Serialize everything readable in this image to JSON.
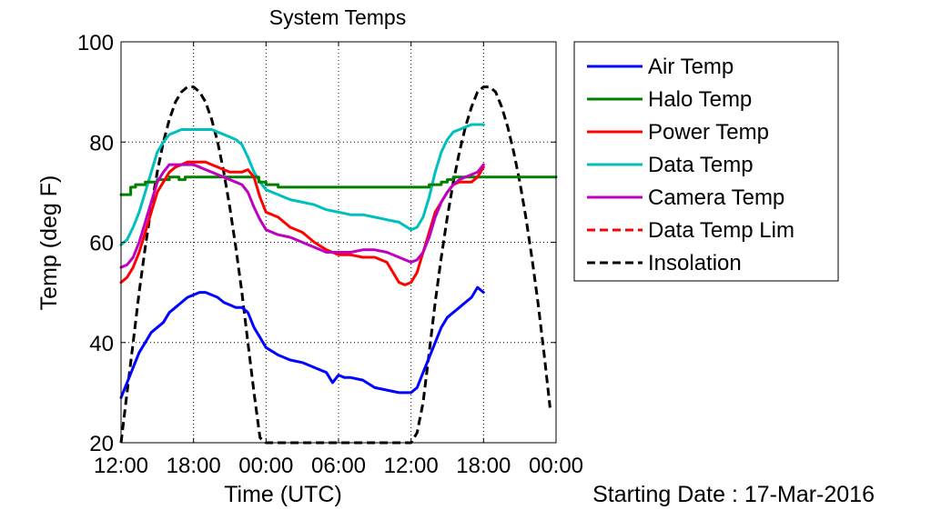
{
  "chart_data": {
    "type": "line",
    "title": "System Temps",
    "xlabel": "Time (UTC)",
    "ylabel": "Temp (deg F)",
    "footnote": "Starting Date : 17-Mar-2016",
    "x_unit": "hours from start",
    "x_ticks": [
      {
        "x": 0,
        "label": "12:00"
      },
      {
        "x": 6,
        "label": "18:00"
      },
      {
        "x": 12,
        "label": "00:00"
      },
      {
        "x": 18,
        "label": "06:00"
      },
      {
        "x": 24,
        "label": "12:00"
      },
      {
        "x": 30,
        "label": "18:00"
      },
      {
        "x": 36,
        "label": "00:00"
      }
    ],
    "xlim": [
      0,
      36
    ],
    "ylim": [
      20,
      100
    ],
    "y_ticks": [
      20,
      40,
      60,
      80,
      100
    ],
    "grid": true,
    "legend_position": "outside-right-top",
    "series": [
      {
        "name": "Air Temp",
        "color": "#0000ff",
        "style": "solid",
        "x": [
          0,
          0.5,
          1,
          1.5,
          2,
          2.5,
          3,
          3.5,
          4,
          4.5,
          5,
          5.5,
          6,
          6.5,
          7,
          7.5,
          8,
          8.5,
          9,
          9.5,
          10,
          10.5,
          11,
          11.5,
          12,
          13,
          14,
          15,
          16,
          17,
          17.5,
          18,
          18.5,
          19,
          20,
          21,
          22,
          23,
          24,
          24.5,
          25,
          25.5,
          26,
          26.5,
          27,
          27.5,
          28,
          28.5,
          29,
          29.5,
          30
        ],
        "y": [
          29,
          32,
          35,
          38,
          40,
          42,
          43,
          44,
          46,
          47,
          48,
          49,
          49.5,
          50,
          50,
          49.5,
          49,
          48,
          47.5,
          47,
          47,
          46,
          43,
          41,
          39,
          37.5,
          36.5,
          36,
          35,
          34,
          32,
          33.5,
          33,
          33,
          32.5,
          31,
          30.5,
          30,
          30,
          31,
          34,
          37,
          40,
          43,
          45,
          46,
          47,
          48,
          49,
          51,
          50
        ]
      },
      {
        "name": "Halo Temp",
        "color": "#008000",
        "style": "solid",
        "x": [
          0,
          0.8,
          0.8,
          1.2,
          1.2,
          2.0,
          2.0,
          3.0,
          3.0,
          4.0,
          4.0,
          4.8,
          4.8,
          5.3,
          5.3,
          11.4,
          11.4,
          12.0,
          12.0,
          13.0,
          13.0,
          25.5,
          25.5,
          26.5,
          26.5,
          27.0,
          27.0,
          27.5,
          27.5,
          36
        ],
        "y": [
          69.5,
          69.5,
          71,
          71,
          71.5,
          71.5,
          72,
          72,
          72.5,
          72.5,
          73,
          73,
          72.5,
          72.5,
          73,
          73,
          72,
          72,
          71.5,
          71.5,
          71,
          71,
          71.5,
          71.5,
          72,
          72,
          72.5,
          72.5,
          73,
          73
        ]
      },
      {
        "name": "Power Temp",
        "color": "#ff0000",
        "style": "solid",
        "x": [
          0,
          0.5,
          1,
          1.5,
          2,
          2.5,
          3,
          3.5,
          4,
          4.5,
          5,
          5.5,
          6,
          6.5,
          7,
          7.5,
          8,
          8.5,
          9,
          9.5,
          10,
          10.5,
          11,
          11.5,
          12,
          13,
          14,
          15,
          16,
          17,
          18,
          19,
          20,
          21,
          22,
          22.5,
          23,
          23.5,
          24,
          24.5,
          25,
          25.5,
          26,
          26.5,
          27,
          27.5,
          28,
          28.5,
          29,
          29.5,
          30
        ],
        "y": [
          52,
          53,
          55,
          58,
          62,
          66,
          70,
          72,
          74,
          75,
          75.5,
          76,
          76,
          76,
          76,
          75.5,
          75,
          74.5,
          74,
          74,
          74,
          74.5,
          73,
          69,
          66,
          65,
          63,
          62,
          60,
          58.5,
          57.5,
          57.5,
          57,
          57,
          56,
          54,
          52,
          51.5,
          52,
          54,
          58,
          62,
          66,
          68,
          70,
          71.5,
          72,
          72,
          72,
          73,
          75
        ]
      },
      {
        "name": "Data Temp",
        "color": "#00bfbf",
        "style": "solid",
        "x": [
          0,
          0.5,
          1,
          1.5,
          2,
          2.5,
          3,
          3.5,
          4,
          4.5,
          5,
          5.5,
          6,
          6.5,
          7,
          7.5,
          8,
          8.5,
          9,
          9.5,
          10,
          10.5,
          11,
          11.5,
          12,
          13,
          14,
          15,
          16,
          17,
          18,
          19,
          20,
          21,
          22,
          23,
          24,
          24.5,
          25,
          25.5,
          26,
          26.5,
          27,
          27.5,
          28,
          28.5,
          29,
          29.5,
          30
        ],
        "y": [
          59.5,
          60.5,
          63,
          66,
          70,
          74,
          78,
          80,
          81.5,
          82,
          82.5,
          82.5,
          82.5,
          82.5,
          82.5,
          82.5,
          82,
          81.5,
          81,
          80.5,
          79.5,
          77,
          74,
          72,
          70.5,
          69.5,
          68.5,
          68,
          67.5,
          66.5,
          66,
          65.5,
          65.5,
          65,
          64.5,
          64,
          62.5,
          63,
          65,
          69,
          74,
          78,
          80.5,
          82,
          82.5,
          83,
          83.5,
          83.5,
          83.5
        ]
      },
      {
        "name": "Camera Temp",
        "color": "#bf00bf",
        "style": "solid",
        "x": [
          0,
          0.5,
          1,
          1.5,
          2,
          2.5,
          3,
          3.5,
          4,
          4.5,
          5,
          5.5,
          6,
          6.5,
          7,
          7.5,
          8,
          8.5,
          9,
          9.5,
          10,
          10.5,
          11,
          11.5,
          12,
          13,
          14,
          15,
          16,
          17,
          18,
          19,
          20,
          21,
          22,
          23,
          24,
          24.5,
          25,
          25.5,
          26,
          26.5,
          27,
          27.5,
          28,
          28.5,
          29,
          29.5,
          30
        ],
        "y": [
          55,
          55.5,
          57,
          60,
          64,
          68,
          72,
          74,
          75.5,
          75.5,
          75.5,
          75.5,
          75.5,
          75,
          74.5,
          74,
          73.5,
          73,
          72.5,
          72,
          71.5,
          70,
          67,
          64.5,
          62.5,
          61.5,
          61,
          60,
          59,
          58,
          58,
          58,
          58.5,
          58.5,
          58,
          57,
          56,
          56.5,
          58,
          61,
          65,
          68,
          70,
          71.5,
          72.5,
          73,
          73.5,
          74,
          75.5
        ]
      },
      {
        "name": "Data Temp Lim",
        "color": "#ff0000",
        "style": "dashed",
        "x": [],
        "y": []
      },
      {
        "name": "Insolation",
        "color": "#000000",
        "style": "dashed",
        "x": [
          0,
          0.5,
          1,
          1.5,
          2,
          2.5,
          3,
          3.5,
          4,
          4.5,
          5,
          5.5,
          6,
          6.5,
          7,
          7.5,
          8,
          8.5,
          9,
          9.5,
          10,
          10.5,
          11,
          11.5,
          12,
          24,
          24.5,
          25,
          25.5,
          26,
          26.5,
          27,
          27.5,
          28,
          28.5,
          29,
          29.5,
          30,
          30.5,
          31,
          31.5,
          32,
          32.5,
          33,
          33.5,
          34,
          34.5,
          35,
          35.5
        ],
        "y": [
          20,
          30,
          40,
          50,
          59,
          67,
          74,
          80,
          84.5,
          88,
          90,
          91,
          91,
          90,
          88,
          84.5,
          80,
          74,
          67,
          59,
          50,
          40,
          30,
          21,
          20,
          20,
          22,
          28,
          38,
          48,
          57,
          65,
          72,
          78,
          83,
          87,
          90,
          91,
          91,
          90,
          87,
          83,
          78,
          72,
          65,
          57,
          48,
          38,
          27
        ]
      }
    ]
  }
}
